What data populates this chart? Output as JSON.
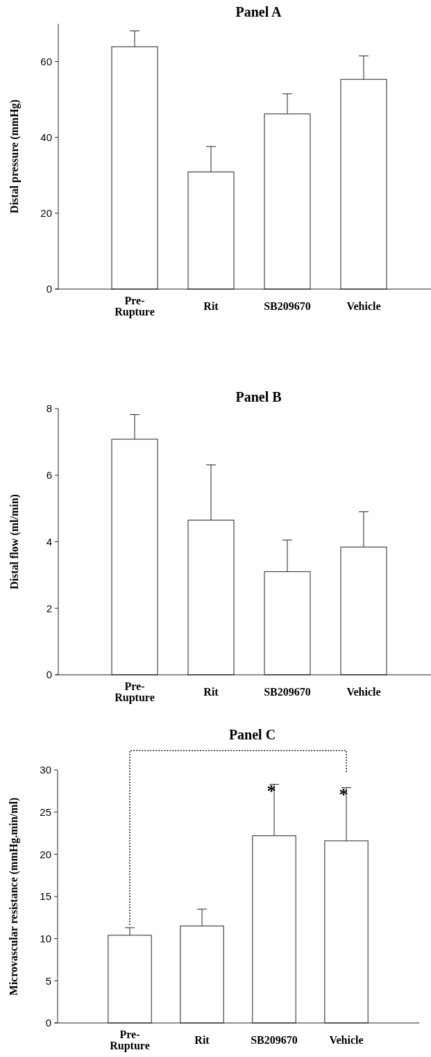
{
  "chart_data": [
    {
      "type": "bar",
      "title": "Panel A",
      "ylabel": "Distal pressure (mmHg)",
      "categories": [
        "Pre-Rupture",
        "Rit",
        "SB209670",
        "Vehicle"
      ],
      "values": [
        63.9,
        30.9,
        46.2,
        55.3
      ],
      "errors": [
        4.2,
        6.7,
        5.3,
        6.2
      ],
      "color": "#ffffff",
      "ylim": [
        0,
        70
      ],
      "yticks": [
        0,
        20,
        40,
        60
      ],
      "grid": false
    },
    {
      "type": "bar",
      "title": "Panel B",
      "ylabel": "Distal flow (ml/min)",
      "categories": [
        "Pre-Rupture",
        "Rit",
        "SB209670",
        "Vehicle"
      ],
      "values": [
        7.08,
        4.65,
        3.1,
        3.84
      ],
      "errors": [
        0.74,
        1.66,
        0.95,
        1.06
      ],
      "color": "#ffffff",
      "ylim": [
        0,
        8
      ],
      "yticks": [
        0,
        2,
        4,
        6,
        8
      ],
      "grid": false
    },
    {
      "type": "bar",
      "title": "Panel C",
      "ylabel": "Microvascular resistance (mmHg.min/ml)",
      "categories": [
        "Pre-Rupture",
        "Rit",
        "SB209670",
        "Vehicle"
      ],
      "values": [
        10.4,
        11.5,
        22.2,
        21.6
      ],
      "errors": [
        0.9,
        2.0,
        6.1,
        6.3
      ],
      "color": "#ffffff",
      "ylim": [
        0,
        30
      ],
      "yticks": [
        0,
        5,
        10,
        15,
        20,
        25,
        30
      ],
      "grid": false,
      "annotations": [
        {
          "text": "*",
          "x": "SB209670",
          "y": 28.3
        },
        {
          "text": "*",
          "x": "Vehicle",
          "y": 27.9
        }
      ]
    }
  ]
}
